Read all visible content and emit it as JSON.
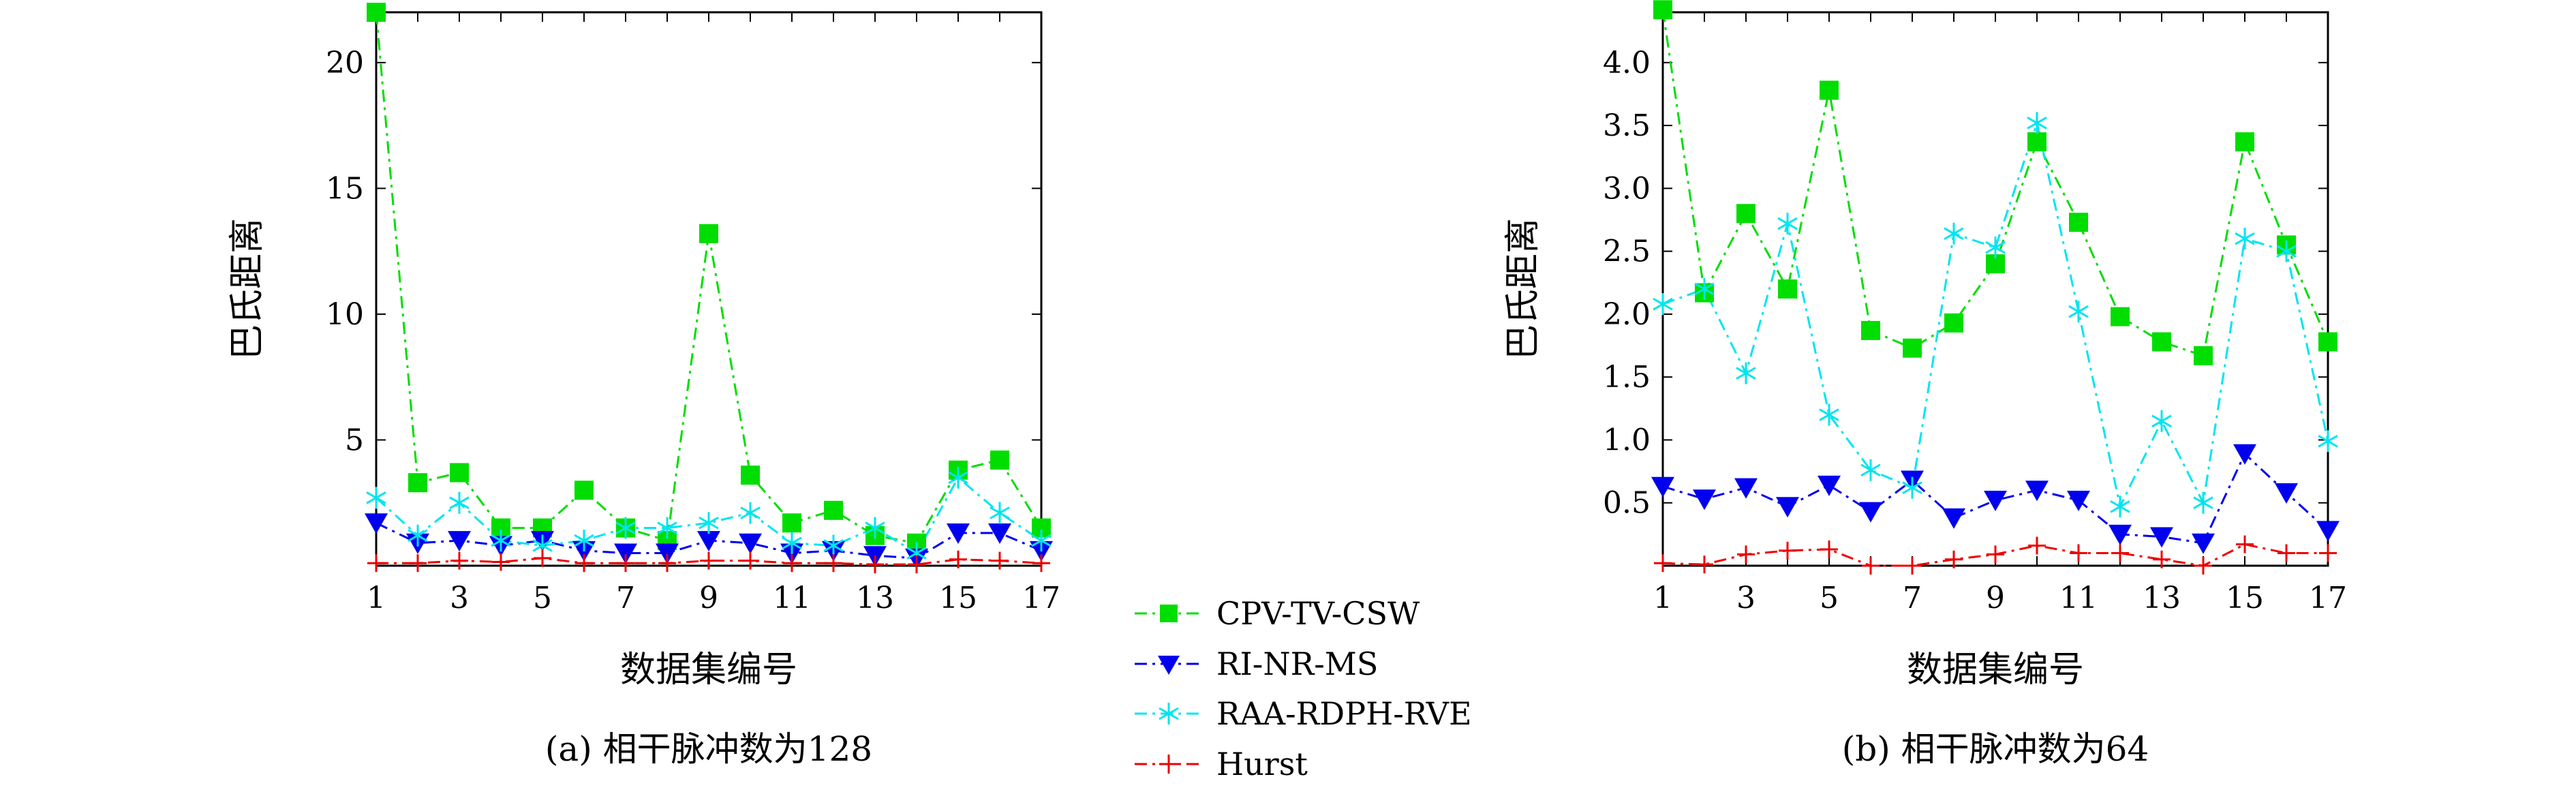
{
  "chart_data": [
    {
      "type": "line",
      "caption": "(a) 相干脉冲数为128",
      "xlabel": "数据集编号",
      "ylabel": "巴氏距离",
      "xlim": [
        1,
        17
      ],
      "ylim": [
        0,
        22
      ],
      "xticks": [
        1,
        3,
        5,
        7,
        9,
        11,
        13,
        15,
        17
      ],
      "yticks": [
        5,
        10,
        15,
        20
      ],
      "grid": false,
      "x": [
        1,
        2,
        3,
        4,
        5,
        6,
        7,
        8,
        9,
        10,
        11,
        12,
        13,
        14,
        15,
        16,
        17
      ],
      "series": [
        {
          "name": "CPV-TV-CSW",
          "values": [
            22.0,
            3.3,
            3.7,
            1.5,
            1.5,
            3.0,
            1.5,
            1.0,
            13.2,
            3.6,
            1.7,
            2.2,
            1.2,
            0.9,
            3.8,
            4.2,
            1.5
          ]
        },
        {
          "name": "RI-NR-MS",
          "values": [
            1.7,
            0.9,
            1.0,
            0.8,
            1.0,
            0.6,
            0.5,
            0.5,
            1.0,
            0.9,
            0.5,
            0.6,
            0.4,
            0.3,
            1.3,
            1.3,
            0.6
          ]
        },
        {
          "name": "RAA-RDPH-RVE",
          "values": [
            2.7,
            1.2,
            2.5,
            1.0,
            0.8,
            1.0,
            1.5,
            1.5,
            1.7,
            2.1,
            0.9,
            0.8,
            1.5,
            0.5,
            3.5,
            2.1,
            1.0
          ]
        },
        {
          "name": "Hurst",
          "values": [
            0.1,
            0.1,
            0.2,
            0.15,
            0.3,
            0.1,
            0.1,
            0.1,
            0.2,
            0.2,
            0.1,
            0.1,
            0.05,
            0.05,
            0.25,
            0.2,
            0.1
          ]
        }
      ]
    },
    {
      "type": "line",
      "caption": "(b) 相干脉冲数为64",
      "xlabel": "数据集编号",
      "ylabel": "巴氏距离",
      "xlim": [
        1,
        17
      ],
      "ylim": [
        0,
        4.4
      ],
      "xticks": [
        1,
        3,
        5,
        7,
        9,
        11,
        13,
        15,
        17
      ],
      "ytick_labels": [
        "0.5",
        "1.0",
        "1.5",
        "2.0",
        "2.5",
        "3.0",
        "3.5",
        "4.0"
      ],
      "grid": false,
      "x": [
        1,
        2,
        3,
        4,
        5,
        6,
        7,
        8,
        9,
        10,
        11,
        12,
        13,
        14,
        15,
        16,
        17
      ],
      "series": [
        {
          "name": "CPV-TV-CSW",
          "values": [
            4.42,
            2.17,
            2.8,
            2.2,
            3.78,
            1.87,
            1.73,
            1.93,
            2.4,
            3.37,
            2.73,
            1.98,
            1.78,
            1.67,
            3.37,
            2.55,
            1.78
          ]
        },
        {
          "name": "RI-NR-MS",
          "values": [
            0.63,
            0.53,
            0.62,
            0.47,
            0.64,
            0.43,
            0.68,
            0.38,
            0.52,
            0.6,
            0.52,
            0.25,
            0.23,
            0.18,
            0.89,
            0.58,
            0.28
          ]
        },
        {
          "name": "RAA-RDPH-RVE",
          "values": [
            2.08,
            2.2,
            1.53,
            2.72,
            1.2,
            0.76,
            0.62,
            2.64,
            2.53,
            3.52,
            2.02,
            0.47,
            1.15,
            0.5,
            2.6,
            2.5,
            0.99
          ]
        },
        {
          "name": "Hurst",
          "values": [
            0.02,
            0.01,
            0.09,
            0.12,
            0.13,
            0.0,
            0.0,
            0.05,
            0.09,
            0.16,
            0.1,
            0.1,
            0.05,
            0.0,
            0.17,
            0.1,
            0.1
          ]
        }
      ]
    }
  ],
  "legend": [
    {
      "name": "CPV-TV-CSW",
      "color": "#00dd00",
      "marker": "square",
      "dash": "dash-dot"
    },
    {
      "name": "RI-NR-MS",
      "color": "#0000ee",
      "marker": "triangle-down",
      "dash": "dash-dot"
    },
    {
      "name": "RAA-RDPH-RVE",
      "color": "#00e5ee",
      "marker": "asterisk",
      "dash": "dash-dot"
    },
    {
      "name": "Hurst",
      "color": "#ee0000",
      "marker": "plus",
      "dash": "dash-dot"
    }
  ]
}
